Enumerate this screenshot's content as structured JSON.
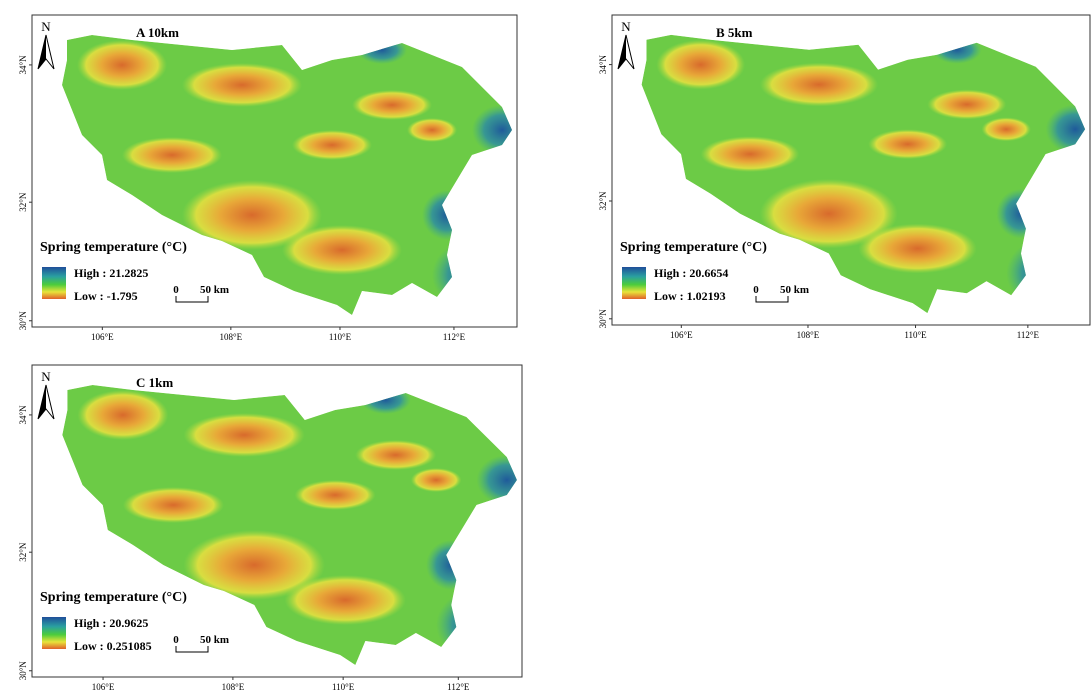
{
  "panels": [
    {
      "north": "N",
      "label": "A  10km",
      "legend": {
        "title": "Spring temperature (°C)",
        "high": "High : 21.2825",
        "low": "Low : -1.795"
      },
      "scale": {
        "zero": "0",
        "distance": "50 km"
      },
      "lat_ticks": [
        "34°N",
        "32°N",
        "30°N"
      ],
      "lon_ticks": [
        "106°E",
        "108°E",
        "110°E",
        "112°E"
      ]
    },
    {
      "north": "N",
      "label": "B  5km",
      "legend": {
        "title": "Spring temperature (°C)",
        "high": "High : 20.6654",
        "low": "Low : 1.02193"
      },
      "scale": {
        "zero": "0",
        "distance": "50 km"
      },
      "lat_ticks": [
        "34°N",
        "32°N",
        "30°N"
      ],
      "lon_ticks": [
        "106°E",
        "108°E",
        "110°E",
        "112°E"
      ]
    },
    {
      "north": "N",
      "label": "C  1km",
      "legend": {
        "title": "Spring temperature (°C)",
        "high": "High : 20.9625",
        "low": "Low : 0.251085"
      },
      "scale": {
        "zero": "0",
        "distance": "50 km"
      },
      "lat_ticks": [
        "34°N",
        "32°N",
        "30°N"
      ],
      "lon_ticks": [
        "106°E",
        "108°E",
        "110°E",
        "112°E"
      ]
    }
  ]
}
